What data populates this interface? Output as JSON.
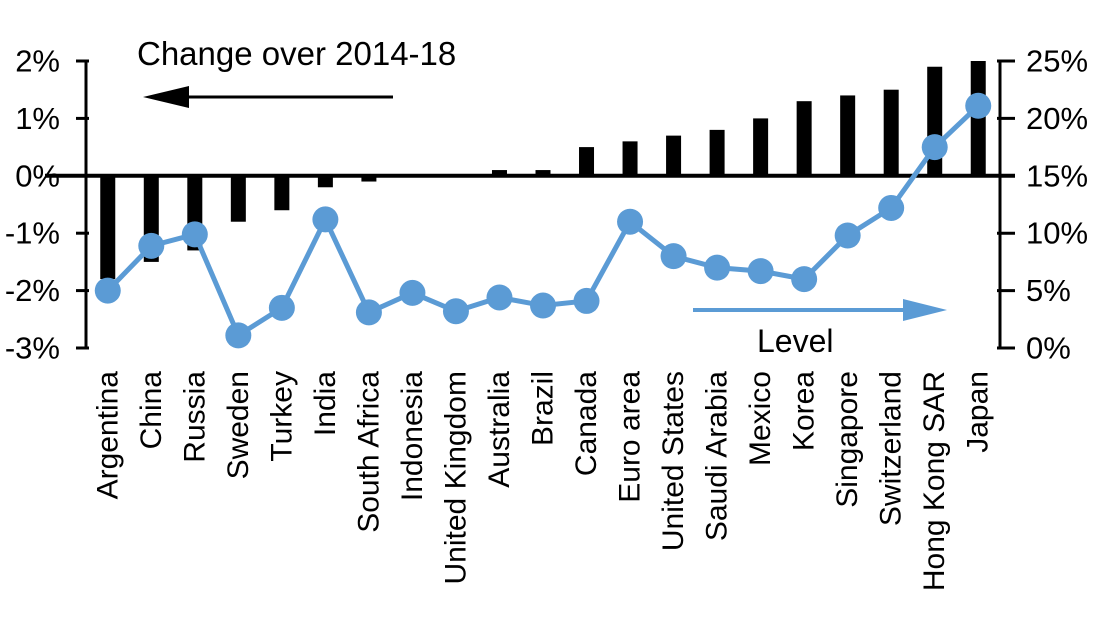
{
  "chart_data": {
    "type": "bar",
    "subtype": "dual-axis bar + line (markers)",
    "title": "",
    "categories": [
      "Argentina",
      "China",
      "Russia",
      "Sweden",
      "Turkey",
      "India",
      "South Africa",
      "Indonesia",
      "United Kingdom",
      "Australia",
      "Brazil",
      "Canada",
      "Euro area",
      "United States",
      "Saudi Arabia",
      "Mexico",
      "Korea",
      "Singapore",
      "Switzerland",
      "Hong Kong SAR",
      "Japan"
    ],
    "series": [
      {
        "name": "Change over 2014-18",
        "type": "bar",
        "axis": "left",
        "color": "#000000",
        "values": [
          -1.8,
          -1.5,
          -1.3,
          -0.8,
          -0.6,
          -0.2,
          -0.1,
          0,
          0,
          0.1,
          0.1,
          0.5,
          0.6,
          0.7,
          0.8,
          1.0,
          1.3,
          1.4,
          1.5,
          1.9,
          2.0
        ]
      },
      {
        "name": "Level",
        "type": "line",
        "axis": "right",
        "color": "#5B9BD5",
        "values": [
          5.0,
          8.9,
          9.9,
          1.1,
          3.5,
          11.2,
          3.1,
          4.8,
          3.2,
          4.4,
          3.7,
          4.1,
          11.0,
          8.0,
          7.0,
          6.7,
          6.0,
          9.8,
          12.2,
          17.5,
          21.1
        ]
      }
    ],
    "left_axis": {
      "min": -3,
      "max": 2,
      "tick_values": [
        2,
        1,
        0,
        -1,
        -2,
        -3
      ],
      "tick_labels": [
        "2%",
        "1%",
        "0%",
        "-1%",
        "-2%",
        "-3%"
      ]
    },
    "right_axis": {
      "min": 0,
      "max": 25,
      "tick_values": [
        25,
        20,
        15,
        10,
        5,
        0
      ],
      "tick_labels": [
        "25%",
        "20%",
        "15%",
        "10%",
        "5%",
        "0%"
      ]
    },
    "annotations": {
      "bar_label": "Change over 2014-18",
      "bar_arrow_direction": "left",
      "line_label": "Level",
      "line_arrow_direction": "right"
    },
    "grid": false,
    "legend_position": "in-plot text annotations with arrows"
  }
}
